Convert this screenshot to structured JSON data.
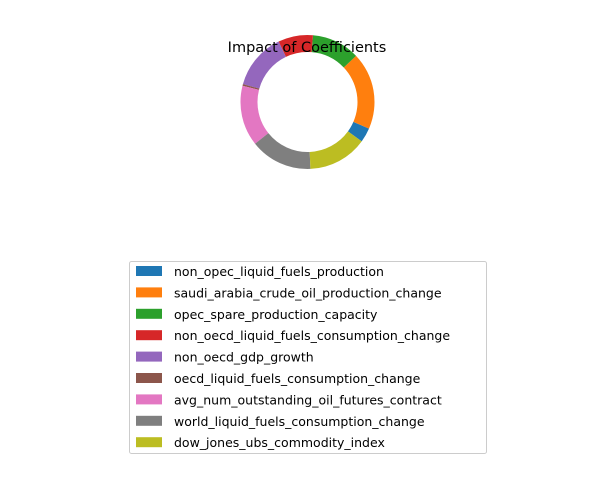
{
  "chart_data": {
    "type": "pie",
    "style": "donut",
    "title": "Impact of Coefficients",
    "legend_placement": "bottom-center",
    "labels": [
      "non_opec_liquid_fuels_production",
      "saudi_arabia_crude_oil_production_change",
      "opec_spare_production_capacity",
      "non_oecd_liquid_fuels_consumption_change",
      "non_oecd_gdp_growth",
      "oecd_liquid_fuels_consumption_change",
      "avg_num_outstanding_oil_futures_contract",
      "world_liquid_fuels_consumption_change",
      "dow_jones_ubs_commodity_index"
    ],
    "values": [
      3.5,
      18.6,
      11.6,
      8.4,
      13.6,
      0.4,
      14.6,
      15.0,
      14.3
    ],
    "colors": [
      "#1f77b4",
      "#ff7f0e",
      "#2ca02c",
      "#d62728",
      "#9467bd",
      "#8c564b",
      "#e377c2",
      "#7f7f7f",
      "#bcbd22"
    ]
  }
}
